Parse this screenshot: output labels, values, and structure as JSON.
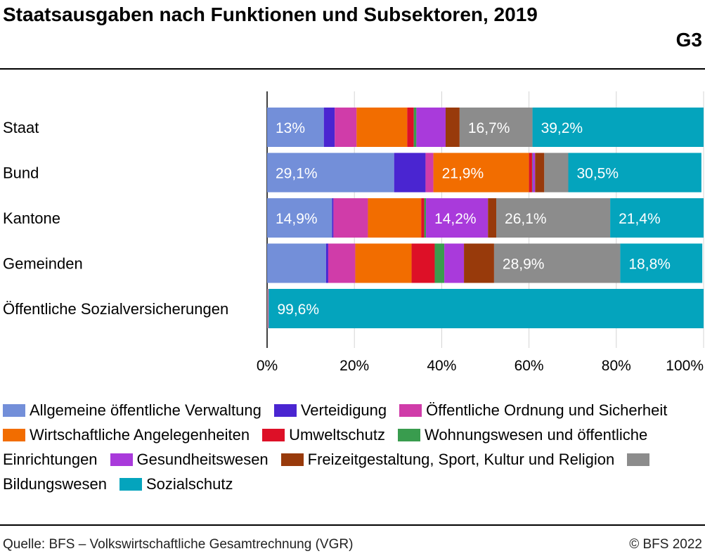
{
  "header": {
    "title": "Staatsausgaben nach Funktionen und Subsektoren, 2019",
    "figure_code": "G3"
  },
  "footer": {
    "source": "Quelle: BFS – Volkswirtschaftliche Gesamtrechnung (VGR)",
    "copyright": "© BFS 2022"
  },
  "chart_data": {
    "type": "bar",
    "orientation": "horizontal",
    "stacked": true,
    "percent_stacked": true,
    "title": "Staatsausgaben nach Funktionen und Subsektoren, 2019",
    "xlabel": "",
    "ylabel": "",
    "xlim": [
      0,
      100
    ],
    "x_ticks": [
      "0%",
      "20%",
      "40%",
      "60%",
      "80%",
      "100%"
    ],
    "grid": true,
    "legend_position": "bottom",
    "categories": [
      "Staat",
      "Bund",
      "Kantone",
      "Gemeinden",
      "Öffentliche Sozialversicherungen"
    ],
    "series": [
      {
        "name": "Allgemeine öffentliche Verwaltung",
        "color": "#738fd9",
        "values": [
          13.0,
          29.1,
          14.9,
          13.5,
          0.1
        ]
      },
      {
        "name": "Verteidigung",
        "color": "#4a25d1",
        "values": [
          2.5,
          7.2,
          0.3,
          0.5,
          0
        ]
      },
      {
        "name": "Öffentliche Ordnung und Sicherheit",
        "color": "#d03ca9",
        "values": [
          5.0,
          1.8,
          7.9,
          6.2,
          0
        ]
      },
      {
        "name": "Wirtschaftliche Angelegenheiten",
        "color": "#f26d00",
        "values": [
          11.6,
          21.9,
          12.2,
          12.9,
          0.1
        ]
      },
      {
        "name": "Umweltschutz",
        "color": "#dd1027",
        "values": [
          1.5,
          0.7,
          0.7,
          5.3,
          0
        ]
      },
      {
        "name": "Wohnungswesen und öffentliche Einrichtungen",
        "color": "#399c4e",
        "values": [
          0.6,
          0.1,
          0.4,
          2.2,
          0
        ]
      },
      {
        "name": "Gesundheitswesen",
        "color": "#a93adb",
        "values": [
          6.7,
          0.6,
          14.2,
          4.5,
          0.1
        ]
      },
      {
        "name": "Freizeitgestaltung, Sport, Kultur und Religion",
        "color": "#983a0b",
        "values": [
          3.2,
          2.1,
          1.9,
          6.9,
          0
        ]
      },
      {
        "name": "Bildungswesen",
        "color": "#8c8c8c",
        "values": [
          16.7,
          5.5,
          26.1,
          28.9,
          0.1
        ]
      },
      {
        "name": "Sozialschutz",
        "color": "#04a4bd",
        "values": [
          39.2,
          30.5,
          21.4,
          18.8,
          99.6
        ]
      }
    ],
    "data_labels": [
      {
        "category": "Staat",
        "series": "Allgemeine öffentliche Verwaltung",
        "text": "13%"
      },
      {
        "category": "Staat",
        "series": "Bildungswesen",
        "text": "16,7%"
      },
      {
        "category": "Staat",
        "series": "Sozialschutz",
        "text": "39,2%"
      },
      {
        "category": "Bund",
        "series": "Allgemeine öffentliche Verwaltung",
        "text": "29,1%"
      },
      {
        "category": "Bund",
        "series": "Wirtschaftliche Angelegenheiten",
        "text": "21,9%"
      },
      {
        "category": "Bund",
        "series": "Sozialschutz",
        "text": "30,5%"
      },
      {
        "category": "Kantone",
        "series": "Allgemeine öffentliche Verwaltung",
        "text": "14,9%"
      },
      {
        "category": "Kantone",
        "series": "Gesundheitswesen",
        "text": "14,2%"
      },
      {
        "category": "Kantone",
        "series": "Bildungswesen",
        "text": "26,1%"
      },
      {
        "category": "Kantone",
        "series": "Sozialschutz",
        "text": "21,4%"
      },
      {
        "category": "Gemeinden",
        "series": "Bildungswesen",
        "text": "28,9%"
      },
      {
        "category": "Gemeinden",
        "series": "Sozialschutz",
        "text": "18,8%"
      },
      {
        "category": "Öffentliche Sozialversicherungen",
        "series": "Sozialschutz",
        "text": "99,6%"
      }
    ]
  }
}
